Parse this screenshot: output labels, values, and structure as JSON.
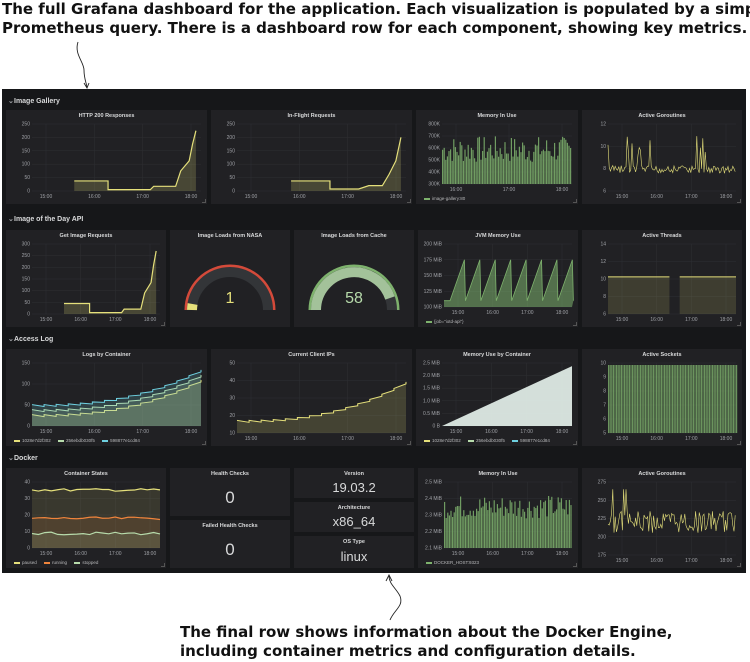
{
  "captions": {
    "top_line1": "The full Grafana dashboard for the application. Each visualization is populated by a simple",
    "top_line2": "Prometheus query. There is a dashboard row for each component, showing key metrics.",
    "bottom_line1": "The final row shows information about the Docker Engine,",
    "bottom_line2": "including container metrics and configuration details."
  },
  "rows": {
    "image_gallery": "Image Gallery",
    "iotd_api": "Image of the Day API",
    "access_log": "Access Log",
    "docker": "Docker"
  },
  "panels": {
    "http200": {
      "title": "HTTP 200 Responses",
      "yticks": [
        "250",
        "200",
        "150",
        "100",
        "50",
        "0"
      ],
      "xticks": [
        "15:00",
        "16:00",
        "17:00",
        "18:00"
      ]
    },
    "inflight": {
      "title": "In-Flight Requests",
      "yticks": [
        "250",
        "200",
        "150",
        "100",
        "50",
        "0"
      ],
      "xticks": [
        "15:00",
        "16:00",
        "17:00",
        "18:00"
      ]
    },
    "mem_gallery": {
      "title": "Memory In Use",
      "yticks": [
        "800K",
        "700K",
        "600K",
        "500K",
        "400K",
        "300K"
      ],
      "xticks": [
        "16:00",
        "17:00",
        "18:00"
      ],
      "legend": "image-gallery:80"
    },
    "goroutines_gallery": {
      "title": "Active Goroutines",
      "yticks": [
        "12",
        "10",
        "8",
        "6"
      ],
      "xticks": [
        "15:00",
        "16:00",
        "17:00",
        "18:00"
      ]
    },
    "get_image": {
      "title": "Get Image Requests",
      "yticks": [
        "300",
        "250",
        "200",
        "150",
        "100",
        "50",
        "0"
      ],
      "xticks": [
        "15:00",
        "16:00",
        "17:00",
        "18:00"
      ]
    },
    "nasa": {
      "title": "Image Loads from NASA",
      "value": "1"
    },
    "cache": {
      "title": "Image Loads from Cache",
      "value": "58"
    },
    "jvm": {
      "title": "JVM Memory Use",
      "yticks": [
        "200 MiB",
        "175 MiB",
        "150 MiB",
        "125 MiB",
        "100 MiB"
      ],
      "xticks": [
        "15:00",
        "16:00",
        "17:00",
        "18:00"
      ],
      "legend": "{job=\"iotd-api\"}"
    },
    "threads": {
      "title": "Active Threads",
      "yticks": [
        "14",
        "12",
        "10",
        "8",
        "6"
      ],
      "xticks": [
        "15:00",
        "16:00",
        "17:00",
        "18:00"
      ]
    },
    "logs": {
      "title": "Logs by Container",
      "yticks": [
        "150",
        "100",
        "50",
        "0"
      ],
      "xticks": [
        "15:00",
        "16:00",
        "17:00",
        "18:00"
      ],
      "legend": [
        "1028e7d2f302",
        "256ebdb030f5",
        "598877e1cd84"
      ]
    },
    "client_ips": {
      "title": "Current Client IPs",
      "yticks": [
        "50",
        "40",
        "30",
        "20",
        "10"
      ],
      "xticks": [
        "15:00",
        "16:00",
        "17:00",
        "18:00"
      ]
    },
    "mem_container": {
      "title": "Memory Use by Container",
      "yticks": [
        "2.5 MiB",
        "2.0 MiB",
        "1.5 MiB",
        "1.0 MiB",
        "0.5 MiB",
        "0 B"
      ],
      "xticks": [
        "15:00",
        "16:00",
        "17:00",
        "18:00"
      ],
      "legend": [
        "1028e7d2f302",
        "256ebdb030f5",
        "598877e1cd84"
      ]
    },
    "sockets": {
      "title": "Active Sockets",
      "yticks": [
        "10",
        "9",
        "8",
        "7",
        "6",
        "5"
      ],
      "xticks": [
        "15:00",
        "16:00",
        "17:00",
        "18:00"
      ]
    },
    "container_states": {
      "title": "Container States",
      "yticks": [
        "40",
        "30",
        "20",
        "10",
        "0"
      ],
      "xticks": [
        "15:00",
        "16:00",
        "17:00",
        "18:00"
      ],
      "legend": [
        "paused",
        "running",
        "stopped"
      ]
    },
    "health": {
      "title": "Health Checks",
      "value": "0"
    },
    "failed_health": {
      "title": "Failed Health Checks",
      "value": "0"
    },
    "version": {
      "title": "Version",
      "value": "19.03.2"
    },
    "arch": {
      "title": "Architecture",
      "value": "x86_64"
    },
    "ostype": {
      "title": "OS Type",
      "value": "linux"
    },
    "mem_docker": {
      "title": "Memory In Use",
      "yticks": [
        "2.5 MiB",
        "2.4 MiB",
        "2.3 MiB",
        "2.2 MiB",
        "2.1 MiB"
      ],
      "xticks": [
        "15:00",
        "16:00",
        "17:00",
        "18:00"
      ],
      "legend": "DOCKER_HOST:9323"
    },
    "goroutines_docker": {
      "title": "Active Goroutines",
      "yticks": [
        "275",
        "250",
        "225",
        "200",
        "175"
      ],
      "xticks": [
        "15:00",
        "16:00",
        "17:00",
        "18:00"
      ]
    }
  },
  "colors": {
    "dashboard_bg": "#161719",
    "panel_bg": "#212124",
    "series_yellow": "#e5e07b",
    "series_green": "#7eb26d",
    "series_olive": "#b7dbab",
    "series_blue": "#6ed0e0",
    "series_orange": "#ef843c",
    "gauge_red": "#d44a3a",
    "gauge_green": "#7eb26d"
  }
}
